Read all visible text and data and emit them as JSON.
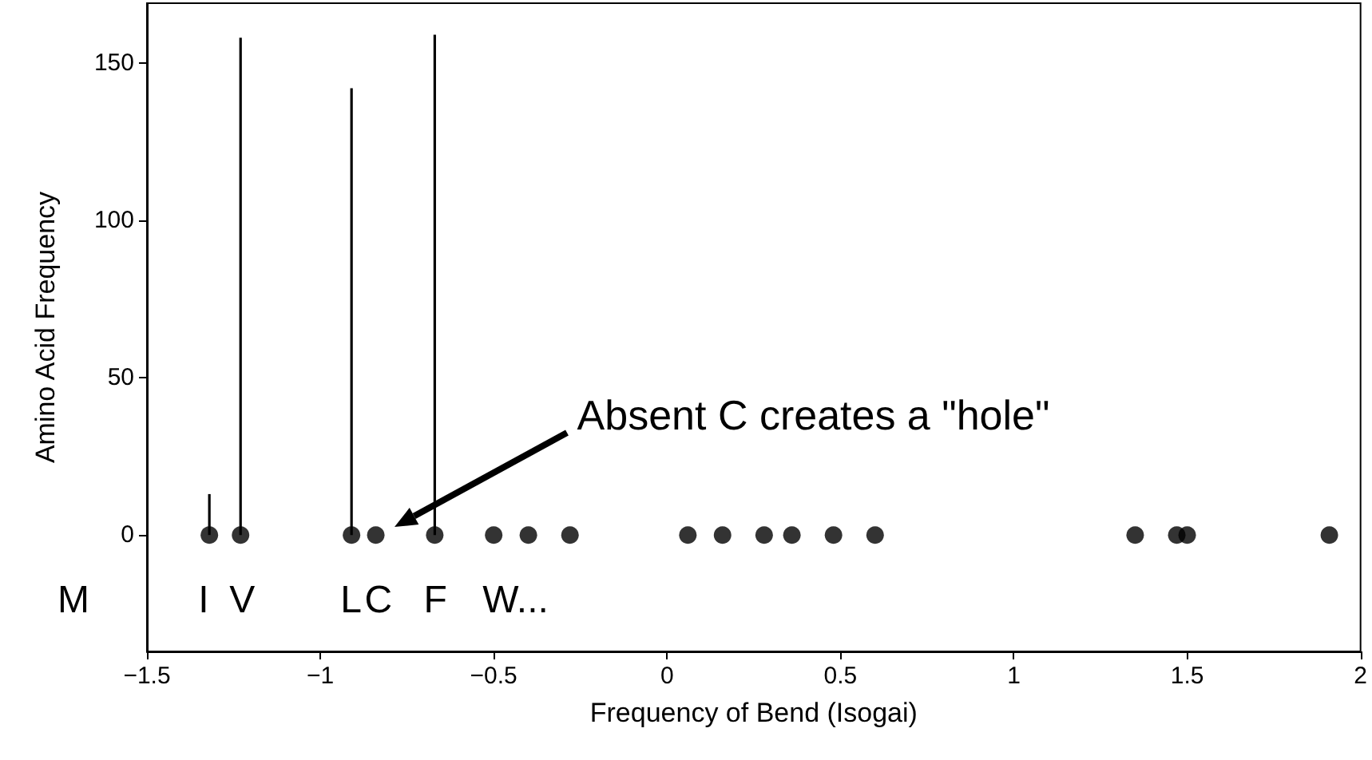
{
  "chart_data": {
    "type": "scatter",
    "xlabel": "Frequency of Bend (Isogai)",
    "ylabel": "Amino Acid Frequency",
    "xlim": [
      -1.5,
      2
    ],
    "xticks": [
      {
        "value": -1.5,
        "label": "−1.5"
      },
      {
        "value": -1,
        "label": "−1"
      },
      {
        "value": -0.5,
        "label": "−0.5"
      },
      0,
      0.5,
      1,
      1.5,
      2
    ],
    "ylim": [
      -37,
      169
    ],
    "yticks": [
      0,
      50,
      100,
      150
    ],
    "marker": "circle",
    "grid": false,
    "series": [
      {
        "color": "#000000",
        "x": [
          -1.32,
          -1.23,
          -0.91,
          -0.84,
          -0.67,
          -0.5,
          -0.4,
          -0.28,
          0.06,
          0.16,
          0.28,
          0.36,
          0.48,
          0.6,
          1.35,
          1.47,
          1.5,
          1.91
        ],
        "values": [
          0,
          0,
          0,
          0,
          0,
          0,
          0,
          0,
          0,
          0,
          0,
          0,
          0,
          0,
          0,
          0,
          0,
          0
        ]
      },
      {
        "type": "bar",
        "color": "#000000",
        "x": [
          -1.32,
          -1.23,
          -0.91,
          -0.67
        ],
        "values": [
          13,
          158,
          142,
          159
        ]
      }
    ],
    "annotations": [
      "Absent C creates a \"hole\"",
      "M",
      "I",
      "V",
      "L",
      "C",
      "F",
      "W..."
    ]
  }
}
